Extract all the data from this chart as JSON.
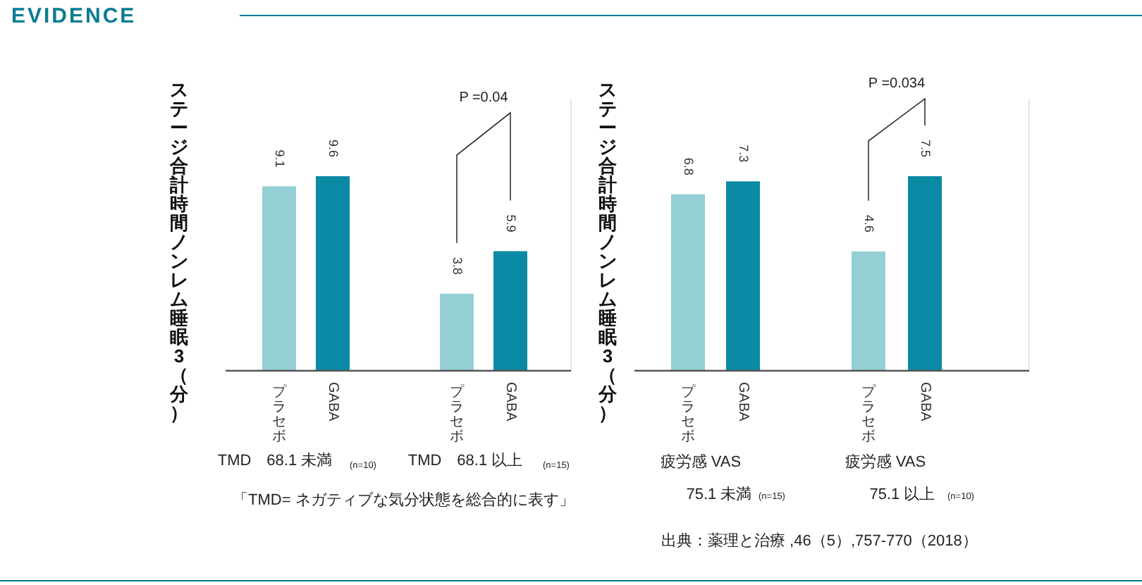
{
  "chart_data": [
    {
      "type": "bar",
      "title": "EVIDENCE",
      "ylabel": "ステージ合計時間ノンレム睡眠3（分）",
      "categories": [
        "プラセボ",
        "GABA",
        "プラセボ",
        "GABA"
      ],
      "values": [
        9.1,
        9.6,
        3.8,
        5.9
      ],
      "colors": [
        "#94cfd4",
        "#0a8aa4",
        "#94cfd4",
        "#0a8aa4"
      ],
      "data_labels": true,
      "annotations": [
        "TMD　68.1 未満",
        "(n=10)",
        "TMD　68.1 以上",
        "(n=15)",
        "P =0.04",
        "「TMD= ネガティブな気分状態を総合的に表す」"
      ]
    },
    {
      "type": "bar",
      "ylabel": "ステージ合計時間ノンレム睡眠3（分）",
      "categories": [
        "プラセボ",
        "GABA",
        "プラセボ",
        "GABA"
      ],
      "values": [
        6.8,
        7.3,
        4.6,
        7.5
      ],
      "colors": [
        "#94cfd4",
        "#0a8aa4",
        "#94cfd4",
        "#0a8aa4"
      ],
      "data_labels": true,
      "annotations": [
        "疲労感 VAS",
        "75.1 未満",
        "(n=15)",
        "疲労感 VAS",
        "75.1 以上",
        "(n=10)",
        "P =0.034",
        "出典：薬理と治療 ,46（5）,757-770（2018）"
      ]
    }
  ]
}
